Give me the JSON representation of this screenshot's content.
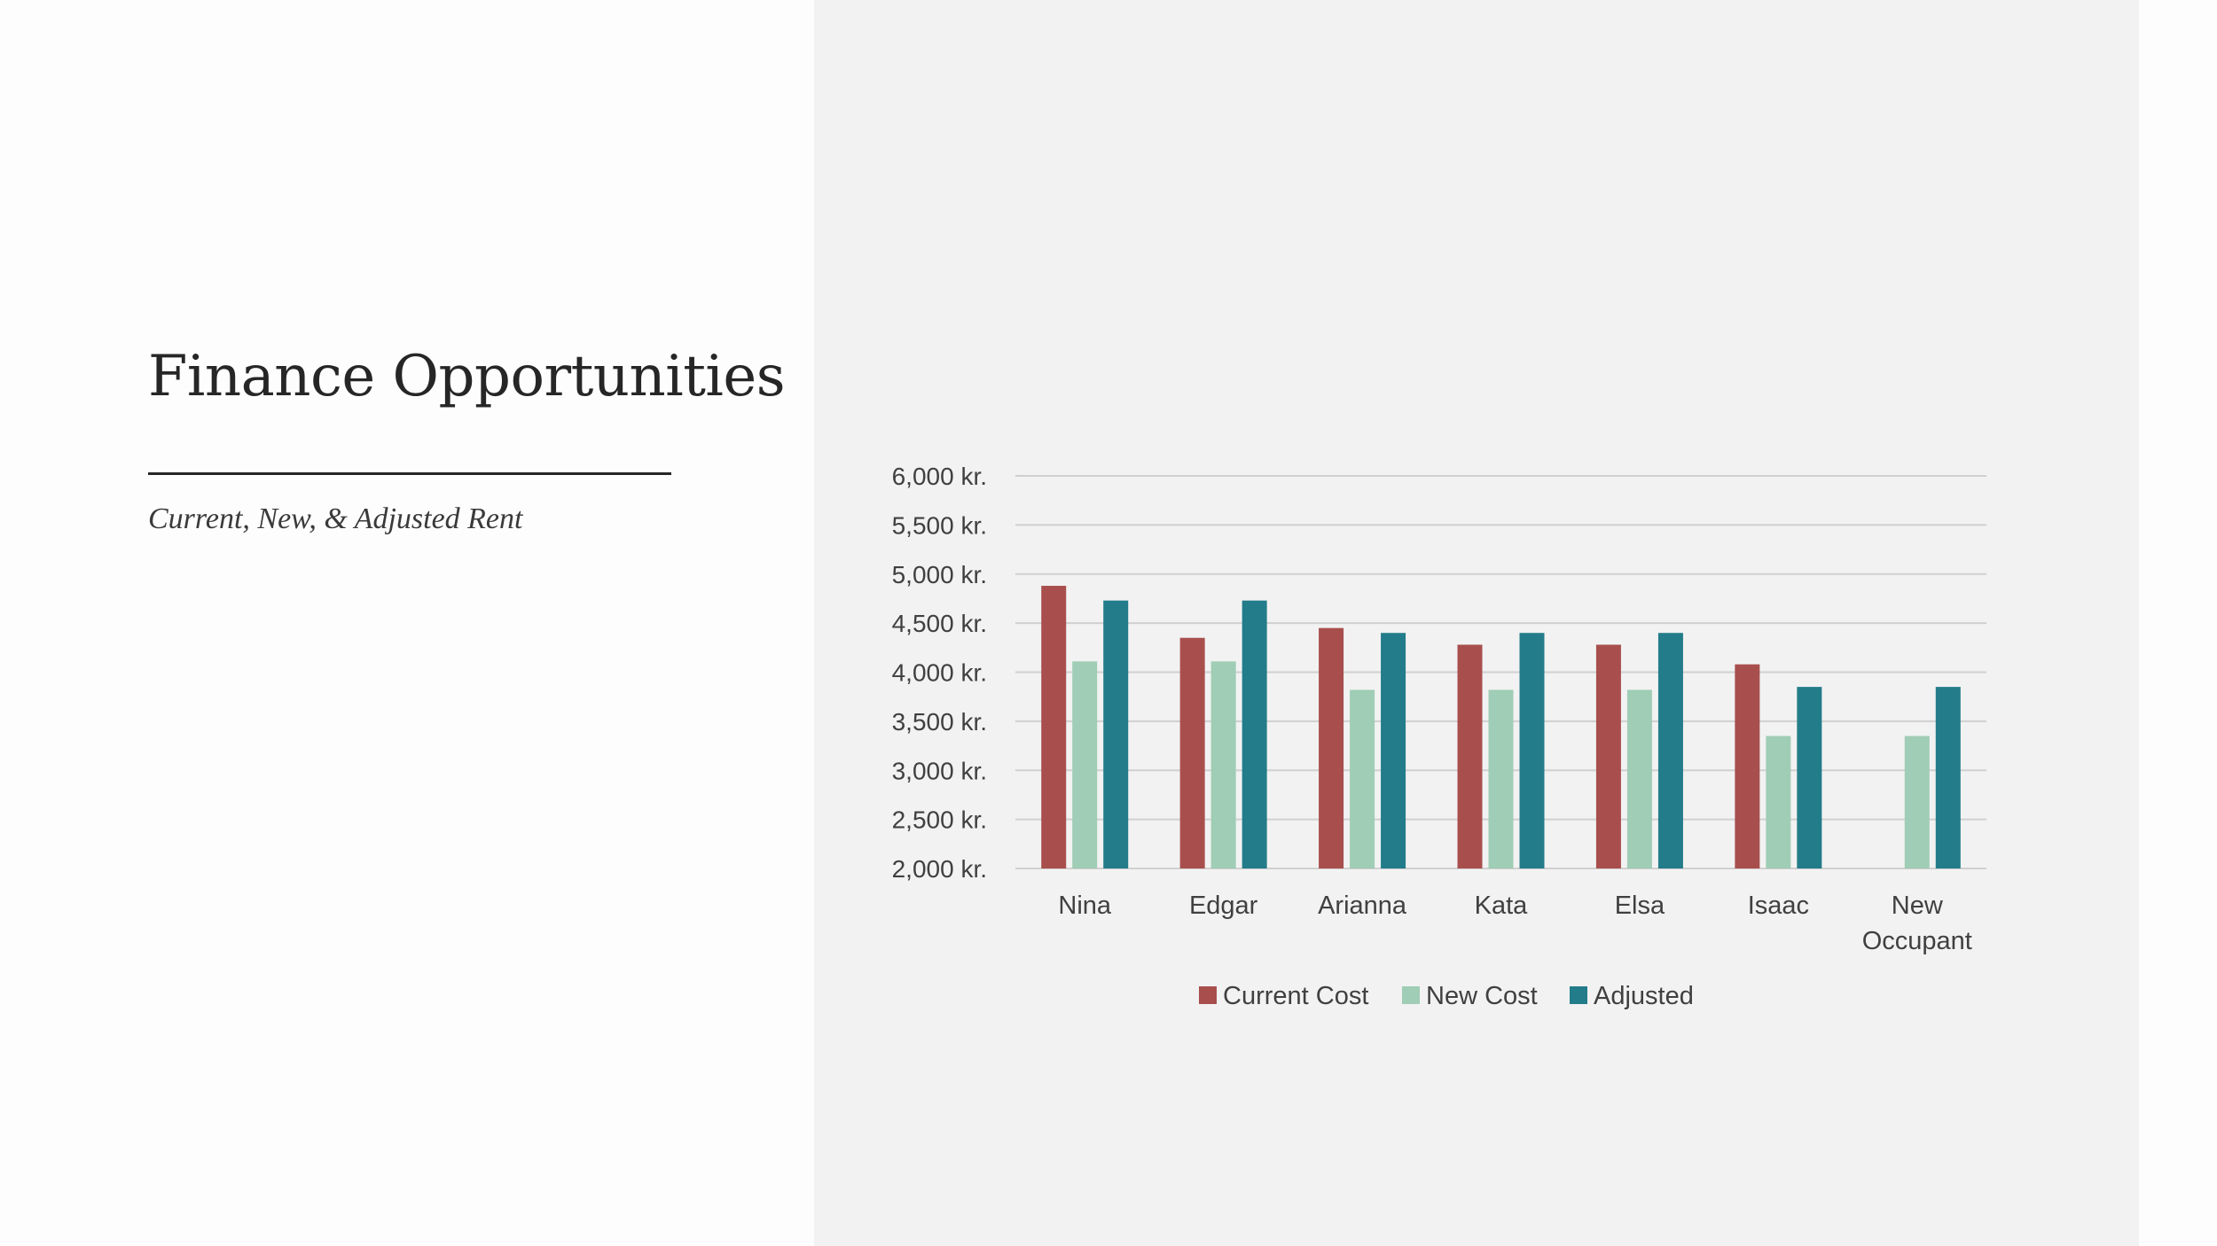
{
  "slide": {
    "title": "Finance Opportunities",
    "subtitle": "Current, New, & Adjusted Rent"
  },
  "colors": {
    "left_bg": "#fdfdfd",
    "right_bg": "#f2f2f2",
    "grid": "#d0d0d0",
    "text": "#404040"
  },
  "chart_data": {
    "type": "bar",
    "title": "",
    "xlabel": "",
    "ylabel": "",
    "ylim": [
      2000,
      6000
    ],
    "yticks": [
      2000,
      2500,
      3000,
      3500,
      4000,
      4500,
      5000,
      5500,
      6000
    ],
    "ytick_labels": [
      "2,000 kr.",
      "2,500 kr.",
      "3,000 kr.",
      "3,500 kr.",
      "4,000 kr.",
      "4,500 kr.",
      "5,000 kr.",
      "5,500 kr.",
      "6,000 kr."
    ],
    "categories": [
      "Nina",
      "Edgar",
      "Arianna",
      "Kata",
      "Elsa",
      "Isaac",
      "New Occupant"
    ],
    "category_lines": [
      [
        "Nina"
      ],
      [
        "Edgar"
      ],
      [
        "Arianna"
      ],
      [
        "Kata"
      ],
      [
        "Elsa"
      ],
      [
        "Isaac"
      ],
      [
        "New",
        "Occupant"
      ]
    ],
    "grid": true,
    "legend_position": "bottom",
    "series": [
      {
        "name": "Current Cost",
        "color": "#a84f4e",
        "values": [
          4880,
          4350,
          4450,
          4280,
          4280,
          4080,
          null
        ]
      },
      {
        "name": "New Cost",
        "color": "#9fcdb5",
        "values": [
          4110,
          4110,
          3820,
          3820,
          3820,
          3350,
          3350
        ]
      },
      {
        "name": "Adjusted",
        "color": "#237c8a",
        "values": [
          4730,
          4730,
          4400,
          4400,
          4400,
          3850,
          3850
        ]
      }
    ]
  }
}
